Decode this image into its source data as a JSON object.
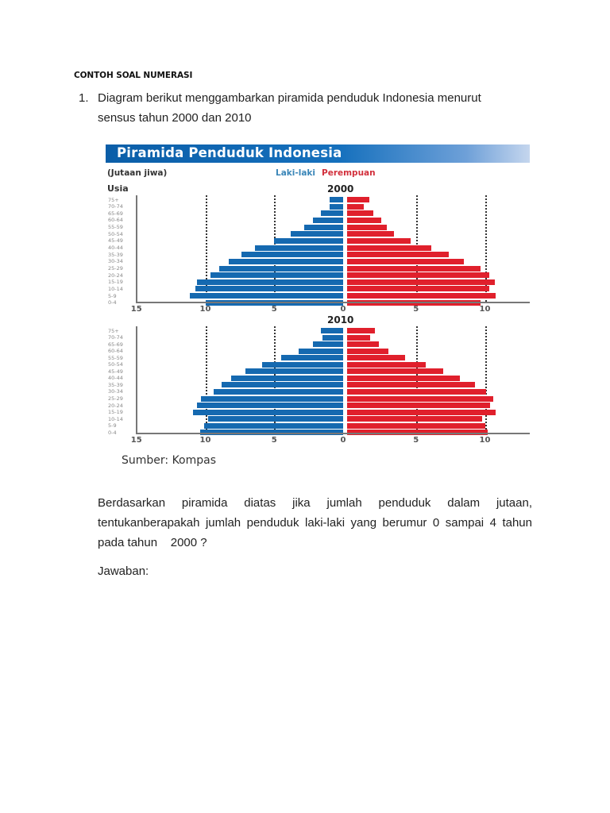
{
  "document": {
    "heading": "CONTOH SOAL NUMERASI",
    "question": {
      "number": "1.",
      "intro_line1": "Diagram berikut menggambarkan piramida penduduk Indonesia menurut",
      "intro_line2": "sensus tahun 2000 dan 2010",
      "source": "Sumber: Kompas",
      "prompt_line1": "Berdasarkan piramida diatas jika jumlah penduduk dalam jutaan,",
      "prompt_line2": "tentukanberapakah jumlah penduduk laki-laki yang berumur 0 sampai 4 tahun",
      "prompt_line3": "pada tahun    2000 ?",
      "answer_label": "Jawaban:"
    }
  },
  "figure": {
    "title": "Piramida Penduduk Indonesia",
    "unit_label": "(Jutaan jiwa)",
    "legend_male": "Laki-laki",
    "legend_female": "Perempuan",
    "age_axis_label": "Usia",
    "colors": {
      "male": "#1569b0",
      "female": "#e0202c",
      "banner": "#0b5ea8"
    }
  },
  "chart_data": [
    {
      "type": "bar",
      "subtype": "population-pyramid",
      "title": "2000",
      "xlabel": "Jutaan jiwa",
      "ylabel": "Usia",
      "categories": [
        "75+",
        "70-74",
        "65-69",
        "60-64",
        "55-59",
        "50-54",
        "45-49",
        "40-44",
        "35-39",
        "30-34",
        "25-29",
        "20-24",
        "15-19",
        "10-14",
        "5-9",
        "0-4"
      ],
      "series": [
        {
          "name": "Laki-laki",
          "values": [
            1.0,
            1.0,
            1.6,
            2.2,
            2.8,
            3.8,
            5.0,
            6.4,
            7.4,
            8.3,
            9.0,
            9.6,
            10.6,
            10.7,
            11.1,
            10.0
          ]
        },
        {
          "name": "Perempuan",
          "values": [
            1.6,
            1.2,
            1.9,
            2.5,
            2.9,
            3.4,
            4.6,
            6.1,
            7.4,
            8.5,
            9.7,
            10.3,
            10.7,
            10.3,
            10.8,
            9.7
          ]
        }
      ],
      "x_ticks_left": [
        "15",
        "10",
        "5",
        "0"
      ],
      "x_ticks_right": [
        "5",
        "10"
      ],
      "xlim": [
        -15,
        13
      ],
      "grid": "dotted at 5 and 10"
    },
    {
      "type": "bar",
      "subtype": "population-pyramid",
      "title": "2010",
      "xlabel": "Jutaan jiwa",
      "ylabel": "Usia",
      "categories": [
        "75+",
        "70-74",
        "65-69",
        "60-64",
        "55-59",
        "50-54",
        "45-49",
        "40-44",
        "35-39",
        "30-34",
        "25-29",
        "20-24",
        "15-19",
        "10-14",
        "5-9",
        "0-4"
      ],
      "series": [
        {
          "name": "Laki-laki",
          "values": [
            1.6,
            1.5,
            2.2,
            3.2,
            4.5,
            5.9,
            7.1,
            8.1,
            8.8,
            9.4,
            10.3,
            10.6,
            10.9,
            9.8,
            10.1,
            10.4
          ]
        },
        {
          "name": "Perempuan",
          "values": [
            2.0,
            1.7,
            2.3,
            3.0,
            4.2,
            5.7,
            7.0,
            8.2,
            9.3,
            10.1,
            10.6,
            10.4,
            10.8,
            9.8,
            10.0,
            10.2
          ]
        }
      ],
      "x_ticks_left": [
        "15",
        "10",
        "5",
        "0"
      ],
      "x_ticks_right": [
        "5",
        "10"
      ],
      "xlim": [
        -15,
        13
      ],
      "grid": "dotted at 5 and 10"
    }
  ]
}
